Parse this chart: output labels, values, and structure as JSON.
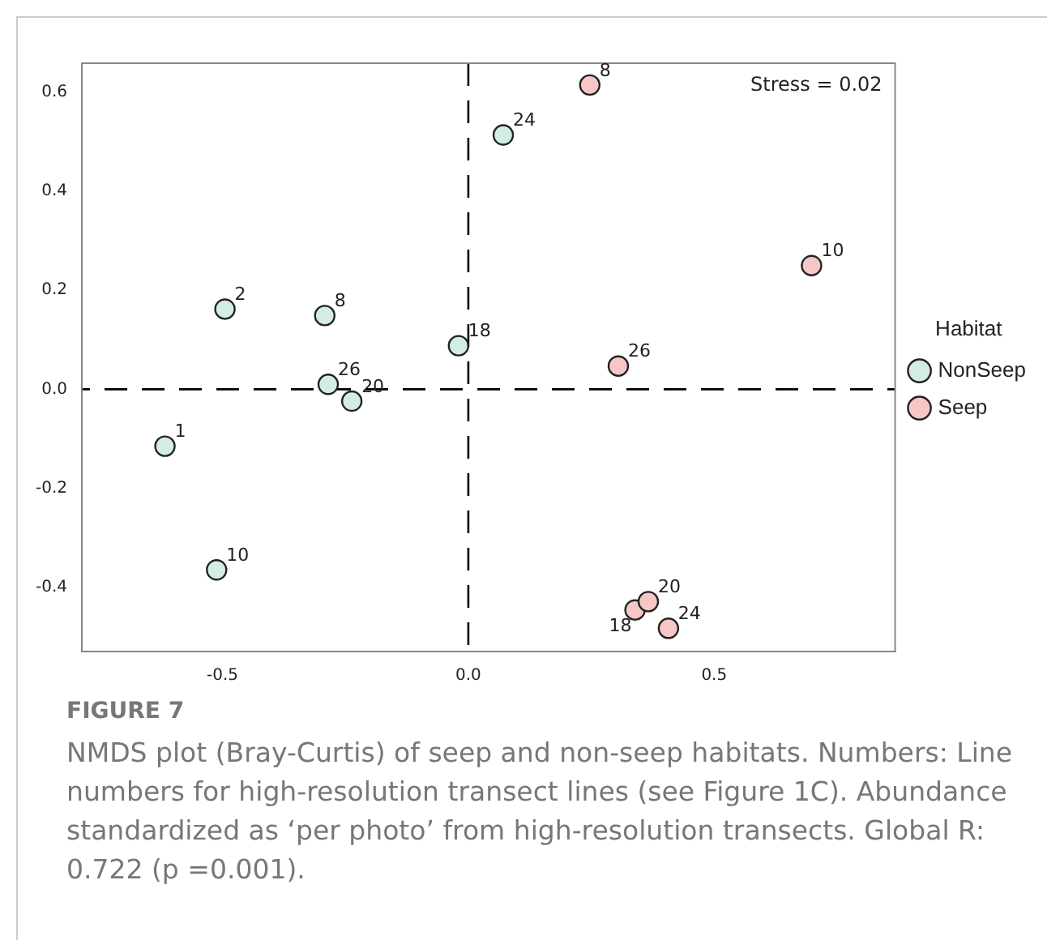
{
  "chart_data": {
    "type": "scatter",
    "title": "FIGURE 7",
    "legend_title": "Habitat",
    "legend": "right",
    "grid": false,
    "marker": "circle",
    "xlim": [
      -0.786,
      0.868
    ],
    "xticks": [
      {
        "value": -0.5,
        "label": "-0.5"
      },
      {
        "value": 0,
        "label": "0.0"
      },
      {
        "value": 0.5,
        "label": "0.5"
      }
    ],
    "ylim": [
      -0.53,
      0.659
    ],
    "yticks": [
      {
        "value": -0.4,
        "label": "-0.4"
      },
      {
        "value": -0.2,
        "label": "-0.2"
      },
      {
        "value": 0,
        "label": "0.0"
      },
      {
        "value": 0.2,
        "label": "0.2"
      },
      {
        "value": 0.4,
        "label": "0.4"
      },
      {
        "value": 0.6,
        "label": "0.6"
      }
    ],
    "ref_lines": [
      {
        "axis": "x",
        "value": 0,
        "line_style": "dashed",
        "color": "#000000"
      },
      {
        "axis": "y",
        "value": 0,
        "line_style": "dashed",
        "color": "#000000"
      }
    ],
    "series": [
      {
        "name": "NonSeep",
        "color": "#d3ece6",
        "x": [
          -0.617,
          -0.495,
          -0.292,
          -0.512,
          -0.02,
          -0.237,
          0.071,
          -0.285
        ],
        "values": [
          -0.115,
          0.162,
          0.149,
          -0.365,
          0.088,
          -0.024,
          0.514,
          0.01
        ]
      },
      {
        "name": "Seep",
        "color": "#f6c7c4",
        "x": [
          0.247,
          0.698,
          0.339,
          0.366,
          0.407,
          0.305
        ],
        "values": [
          0.615,
          0.25,
          -0.446,
          -0.429,
          -0.483,
          0.047
        ]
      }
    ],
    "annotations": [
      "Stress = 0.02",
      "NMDS plot (Bray-Curtis) of seep and non-seep habitats. Numbers: Line numbers for high-resolution transect lines (see Figure 1C). Abundance standardized as ‘per photo’ from high-resolution transects. Global R: 0.722 (p =0.001).",
      {
        "text": "1",
        "x": -0.617,
        "y": -0.115
      },
      {
        "text": "2",
        "x": -0.495,
        "y": 0.162
      },
      {
        "text": "8",
        "x": -0.292,
        "y": 0.149
      },
      {
        "text": "10",
        "x": -0.512,
        "y": -0.365
      },
      {
        "text": "18",
        "x": -0.02,
        "y": 0.088
      },
      {
        "text": "20",
        "x": -0.237,
        "y": -0.024
      },
      {
        "text": "24",
        "x": 0.071,
        "y": 0.514
      },
      {
        "text": "26",
        "x": -0.285,
        "y": 0.01
      },
      {
        "text": "8",
        "x": 0.247,
        "y": 0.615
      },
      {
        "text": "10",
        "x": 0.698,
        "y": 0.25
      },
      {
        "text": "18",
        "x": 0.339,
        "y": -0.446
      },
      {
        "text": "20",
        "x": 0.366,
        "y": -0.429
      },
      {
        "text": "24",
        "x": 0.407,
        "y": -0.483
      },
      {
        "text": "26",
        "x": 0.305,
        "y": 0.047
      }
    ]
  }
}
